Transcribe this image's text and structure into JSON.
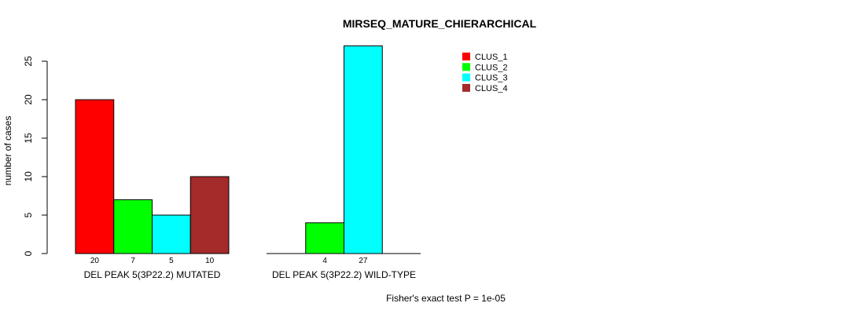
{
  "chart_data": {
    "type": "bar",
    "title": "MIRSEQ_MATURE_CHIERARCHICAL",
    "ylabel": "number of cases",
    "xlabel": "",
    "ylim": [
      0,
      25
    ],
    "yticks": [
      0,
      5,
      10,
      15,
      20,
      25
    ],
    "groups": [
      "DEL PEAK  5(3P22.2) MUTATED",
      "DEL PEAK  5(3P22.2) WILD-TYPE"
    ],
    "series": [
      {
        "name": "CLUS_1",
        "color": "#ff0000",
        "values": [
          20,
          0
        ]
      },
      {
        "name": "CLUS_2",
        "color": "#00ff00",
        "values": [
          7,
          4
        ]
      },
      {
        "name": "CLUS_3",
        "color": "#00ffff",
        "values": [
          5,
          27
        ]
      },
      {
        "name": "CLUS_4",
        "color": "#a52a2a",
        "values": [
          10,
          0
        ]
      }
    ],
    "legend_position": "top-right",
    "annotation": "Fisher's exact test P = 1e-05"
  }
}
